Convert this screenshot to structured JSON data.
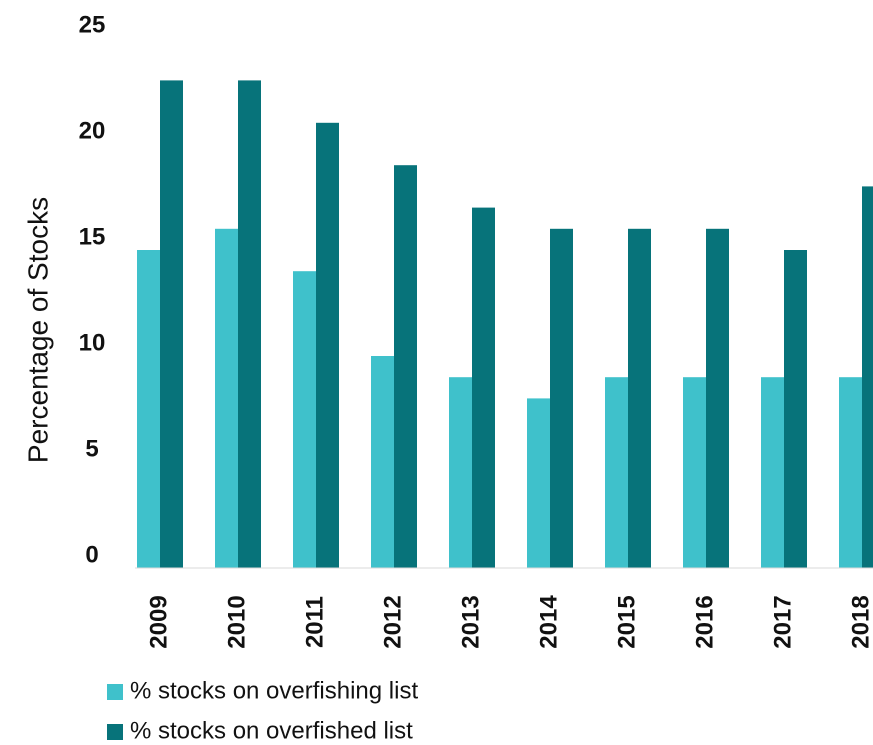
{
  "chart_data": {
    "type": "bar",
    "y_label": "Percentage of Stocks",
    "categories": [
      "2009",
      "2010",
      "2011",
      "2012",
      "2013",
      "2014",
      "2015",
      "2016",
      "2017",
      "2018"
    ],
    "series": [
      {
        "name": "% stocks on overfishing list",
        "color": "#3fc1cb",
        "values": [
          15,
          16,
          14,
          10,
          9,
          8,
          9,
          9,
          9,
          9
        ]
      },
      {
        "name": "% stocks on overfished list",
        "color": "#07737a",
        "values": [
          23,
          23,
          21,
          19,
          17,
          16,
          16,
          16,
          15,
          18
        ]
      }
    ],
    "ylim": [
      0,
      25
    ],
    "yticks": [
      0,
      5,
      10,
      15,
      20,
      25
    ],
    "grid": false
  }
}
